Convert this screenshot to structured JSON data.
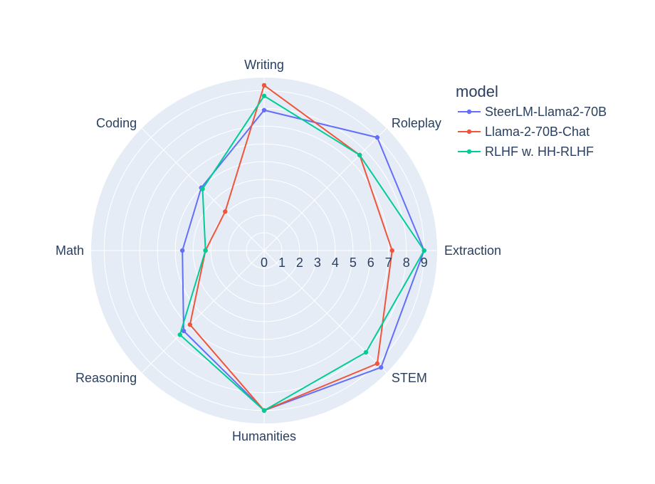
{
  "chart_data": {
    "type": "radar",
    "categories": [
      "Writing",
      "Roleplay",
      "Extraction",
      "STEM",
      "Humanities",
      "Reasoning",
      "Math",
      "Coding"
    ],
    "radial_range": [
      0,
      9
    ],
    "radial_ticks": [
      "0",
      "1",
      "2",
      "3",
      "4",
      "5",
      "6",
      "7",
      "8",
      "9"
    ],
    "grid": true,
    "legend_title": "model",
    "legend_position": "top-right",
    "series": [
      {
        "name": "SteerLM-Llama2-70B",
        "color": "#636efa",
        "values": [
          7.9,
          9.0,
          9.0,
          9.3,
          9.0,
          6.4,
          4.6,
          5.0
        ]
      },
      {
        "name": "Llama-2-70B-Chat",
        "color": "#ef553b",
        "values": [
          9.3,
          7.6,
          7.2,
          9.0,
          9.0,
          5.9,
          3.3,
          3.1
        ]
      },
      {
        "name": "RLHF w. HH-RLHF",
        "color": "#00cc96",
        "values": [
          8.7,
          7.6,
          9.0,
          8.1,
          9.0,
          6.7,
          3.3,
          4.9
        ]
      }
    ]
  }
}
